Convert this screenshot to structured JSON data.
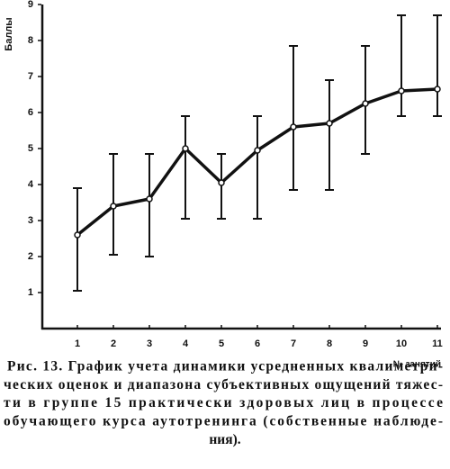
{
  "chart_data": {
    "type": "line",
    "y_label": "Баллы",
    "x_label": "№ занятий",
    "caption": [
      "Рис. 13. График учета динамики усредненных квалиметри-",
      "ческих оценок и диапазона субъективных ощущений тяжес-",
      "ти в группе 15 практически здоровых лиц в процессе",
      "обучающего курса аутотренинга (собственные наблюде-",
      "ния)."
    ],
    "x": [
      1,
      2,
      3,
      4,
      5,
      6,
      7,
      8,
      9,
      10,
      11
    ],
    "series": [
      {
        "color": "#111111",
        "values": [
          2.6,
          3.4,
          3.6,
          5.0,
          4.05,
          4.95,
          5.6,
          5.7,
          6.25,
          6.6,
          6.65
        ],
        "low": [
          1.05,
          2.05,
          2.0,
          3.05,
          3.05,
          3.05,
          3.85,
          3.85,
          4.85,
          5.9,
          5.9
        ],
        "high": [
          3.9,
          4.85,
          4.85,
          5.9,
          4.85,
          5.9,
          7.85,
          6.9,
          7.85,
          8.7,
          8.7
        ]
      }
    ],
    "xlim": [
      0,
      11
    ],
    "xticks": [
      1,
      2,
      3,
      4,
      5,
      6,
      7,
      8,
      9,
      10,
      11
    ],
    "ylim": [
      0,
      9
    ],
    "yticks": [
      1,
      2,
      3,
      4,
      5,
      6,
      7,
      8,
      9
    ]
  }
}
